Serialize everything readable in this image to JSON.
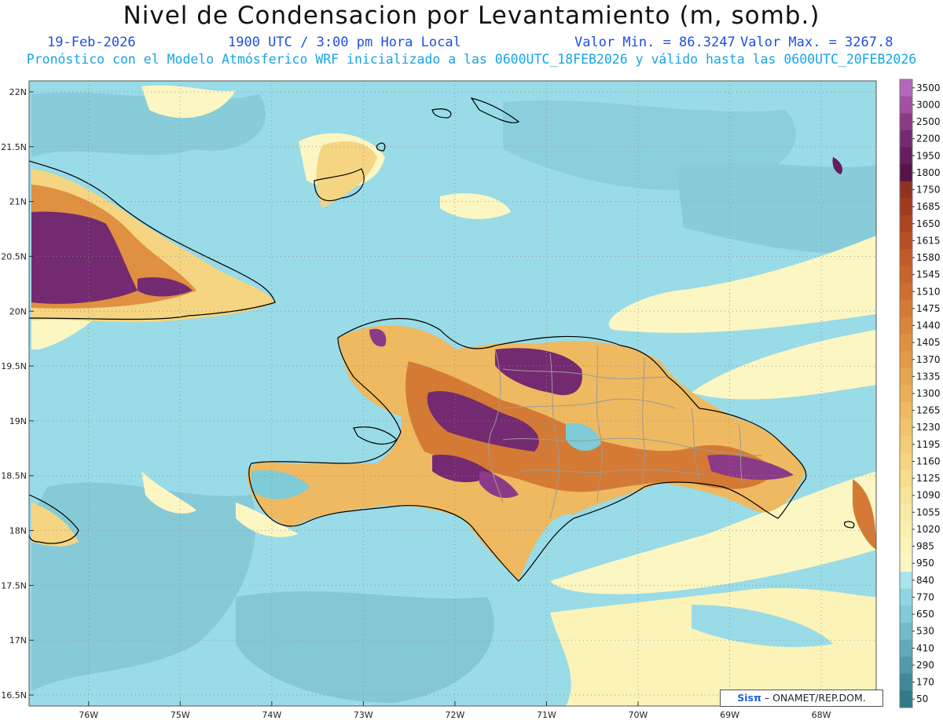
{
  "header": {
    "title": "Nivel de Condensacion por Levantamiento (m, somb.)",
    "date": "19-Feb-2026",
    "time": "1900 UTC / 3:00 pm Hora Local",
    "min_label": "Valor Min. = 86.3247",
    "max_label": "Valor Max. = 3267.8",
    "description": "Pronóstico con el Modelo Atmósferico WRF inicializado a las 0600UTC_18FEB2026 y válido hasta las  0600UTC_20FEB2026"
  },
  "colors": {
    "title_text": "#111111",
    "info_text": "#1f4fe0",
    "description_text": "#18a4e4"
  },
  "map": {
    "lat_labels": [
      "22N",
      "21.5N",
      "21N",
      "20.5N",
      "20N",
      "19.5N",
      "19N",
      "18.5N",
      "18N",
      "17.5N",
      "17N",
      "16.5N"
    ],
    "lon_labels": [
      "76W",
      "75W",
      "74W",
      "73W",
      "72W",
      "71W",
      "70W",
      "69W",
      "68W"
    ],
    "lat_values": [
      22,
      21.5,
      21,
      20.5,
      20,
      19.5,
      19,
      18.5,
      18,
      17.5,
      17,
      16.5
    ],
    "lon_values": [
      -76,
      -75,
      -74,
      -73,
      -72,
      -71,
      -70,
      -69,
      -68
    ],
    "extent": {
      "lon_min": -76.65,
      "lon_max": -67.4,
      "lat_min": 16.4,
      "lat_max": 22.1
    },
    "credit_brand": "Sisπ",
    "credit_text": " – ONAMET/REP.DOM."
  },
  "colorbar": {
    "levels": [
      "3500",
      "3000",
      "2500",
      "2200",
      "1950",
      "1800",
      "1750",
      "1685",
      "1650",
      "1615",
      "1580",
      "1545",
      "1510",
      "1475",
      "1440",
      "1405",
      "1370",
      "1335",
      "1300",
      "1265",
      "1230",
      "1195",
      "1160",
      "1125",
      "1090",
      "1055",
      "1020",
      "985",
      "950",
      "840",
      "770",
      "650",
      "530",
      "410",
      "290",
      "170",
      "50"
    ],
    "colors": [
      "#b466b8",
      "#a2509f",
      "#8b3a88",
      "#742a70",
      "#651d5d",
      "#561347",
      "#91321f",
      "#a23a1f",
      "#ad4420",
      "#b84f22",
      "#c15a26",
      "#c8652a",
      "#cf6f2f",
      "#d57a34",
      "#da853a",
      "#df9040",
      "#e39a47",
      "#e7a54f",
      "#ebaf58",
      "#eeb961",
      "#f1c36b",
      "#f3cc76",
      "#f5d581",
      "#f7dd8c",
      "#f8e498",
      "#f9eaa3",
      "#faefae",
      "#fbf3b8",
      "#fcf6c2",
      "#a8e5ee",
      "#8ed6e3",
      "#7fcbd8",
      "#6fbccb",
      "#5eacbc",
      "#4e9bab",
      "#3f8a9a",
      "#317a8a"
    ]
  }
}
